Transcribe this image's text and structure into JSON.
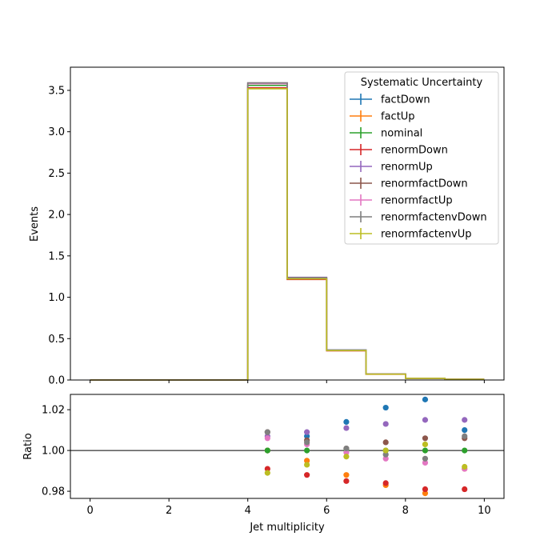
{
  "chart_data": [
    {
      "type": "step",
      "xlabel": "",
      "ylabel": "Events",
      "xlim": [
        -0.5,
        10.5
      ],
      "ylim": [
        0,
        3.78
      ],
      "yticks": [
        0.0,
        0.5,
        1.0,
        1.5,
        2.0,
        2.5,
        3.0,
        3.5
      ],
      "ytick_labels": [
        "0.0",
        "0.5",
        "1.0",
        "1.5",
        "2.0",
        "2.5",
        "3.0",
        "3.5"
      ],
      "bin_edges": [
        0,
        1,
        2,
        3,
        4,
        5,
        6,
        7,
        8,
        9,
        10
      ],
      "legend": {
        "title": "Systematic Uncertainty",
        "placement": "top-right"
      },
      "series": [
        {
          "name": "factDown",
          "color": "#1f77b4",
          "values": [
            0,
            0,
            0,
            0,
            3.56,
            1.235,
            0.363,
            0.072,
            0.02,
            0.008
          ]
        },
        {
          "name": "factUp",
          "color": "#ff7f0e",
          "values": [
            0,
            0,
            0,
            0,
            3.56,
            1.228,
            0.354,
            0.07,
            0.019,
            0.008
          ]
        },
        {
          "name": "nominal",
          "color": "#2ca02c",
          "values": [
            0,
            0,
            0,
            0,
            3.56,
            1.23,
            0.358,
            0.071,
            0.0195,
            0.008
          ]
        },
        {
          "name": "renormDown",
          "color": "#d62728",
          "values": [
            0,
            0,
            0,
            0,
            3.53,
            1.215,
            0.353,
            0.0698,
            0.0191,
            0.0078
          ]
        },
        {
          "name": "renormUp",
          "color": "#9467bd",
          "values": [
            0,
            0,
            0,
            0,
            3.59,
            1.241,
            0.362,
            0.0719,
            0.0198,
            0.0081
          ]
        },
        {
          "name": "renormfactDown",
          "color": "#8c564b",
          "values": [
            0,
            0,
            0,
            0,
            3.59,
            1.236,
            0.3585,
            0.0713,
            0.0196,
            0.008
          ]
        },
        {
          "name": "renormfactUp",
          "color": "#e377c2",
          "values": [
            0,
            0,
            0,
            0,
            3.58,
            1.234,
            0.3575,
            0.0707,
            0.0194,
            0.008
          ]
        },
        {
          "name": "renormfactenvDown",
          "color": "#7f7f7f",
          "values": [
            0,
            0,
            0,
            0,
            3.59,
            1.236,
            0.3585,
            0.0709,
            0.0194,
            0.008
          ]
        },
        {
          "name": "renormfactenvUp",
          "color": "#bcbd22",
          "values": [
            0,
            0,
            0,
            0,
            3.52,
            1.222,
            0.357,
            0.0711,
            0.0196,
            0.0079
          ]
        }
      ]
    },
    {
      "type": "scatter",
      "xlabel": "Jet multiplicity",
      "ylabel": "Ratio",
      "xlim": [
        -0.5,
        10.5
      ],
      "ylim": [
        0.9765,
        1.0275
      ],
      "xticks": [
        0,
        2,
        4,
        6,
        8,
        10
      ],
      "xtick_labels": [
        "0",
        "2",
        "4",
        "6",
        "8",
        "10"
      ],
      "yticks": [
        0.98,
        1.0,
        1.02
      ],
      "ytick_labels": [
        "0.98",
        "1.00",
        "1.02"
      ],
      "reference_line": 1.0,
      "x": [
        4.5,
        5.5,
        6.5,
        7.5,
        8.5,
        9.5
      ],
      "series": [
        {
          "name": "factDown",
          "color": "#1f77b4",
          "values": [
            1.0,
            1.007,
            1.014,
            1.021,
            1.025,
            1.01
          ]
        },
        {
          "name": "factUp",
          "color": "#ff7f0e",
          "values": [
            1.0,
            0.995,
            0.988,
            0.983,
            0.979,
            0.991
          ]
        },
        {
          "name": "nominal",
          "color": "#2ca02c",
          "values": [
            1.0,
            1.0,
            1.0,
            1.0,
            1.0,
            1.0
          ]
        },
        {
          "name": "renormDown",
          "color": "#d62728",
          "values": [
            0.991,
            0.988,
            0.985,
            0.984,
            0.981,
            0.981
          ]
        },
        {
          "name": "renormUp",
          "color": "#9467bd",
          "values": [
            1.007,
            1.009,
            1.011,
            1.013,
            1.015,
            1.015
          ]
        },
        {
          "name": "renormfactDown",
          "color": "#8c564b",
          "values": [
            1.009,
            1.005,
            1.001,
            1.004,
            1.006,
            1.006
          ]
        },
        {
          "name": "renormfactUp",
          "color": "#e377c2",
          "values": [
            1.006,
            1.003,
            0.999,
            0.996,
            0.994,
            0.991
          ]
        },
        {
          "name": "renormfactenvDown",
          "color": "#7f7f7f",
          "values": [
            1.009,
            1.004,
            1.001,
            0.998,
            0.996,
            1.007
          ]
        },
        {
          "name": "renormfactenvUp",
          "color": "#bcbd22",
          "values": [
            0.989,
            0.993,
            0.997,
            1.0,
            1.003,
            0.992
          ]
        }
      ]
    }
  ]
}
